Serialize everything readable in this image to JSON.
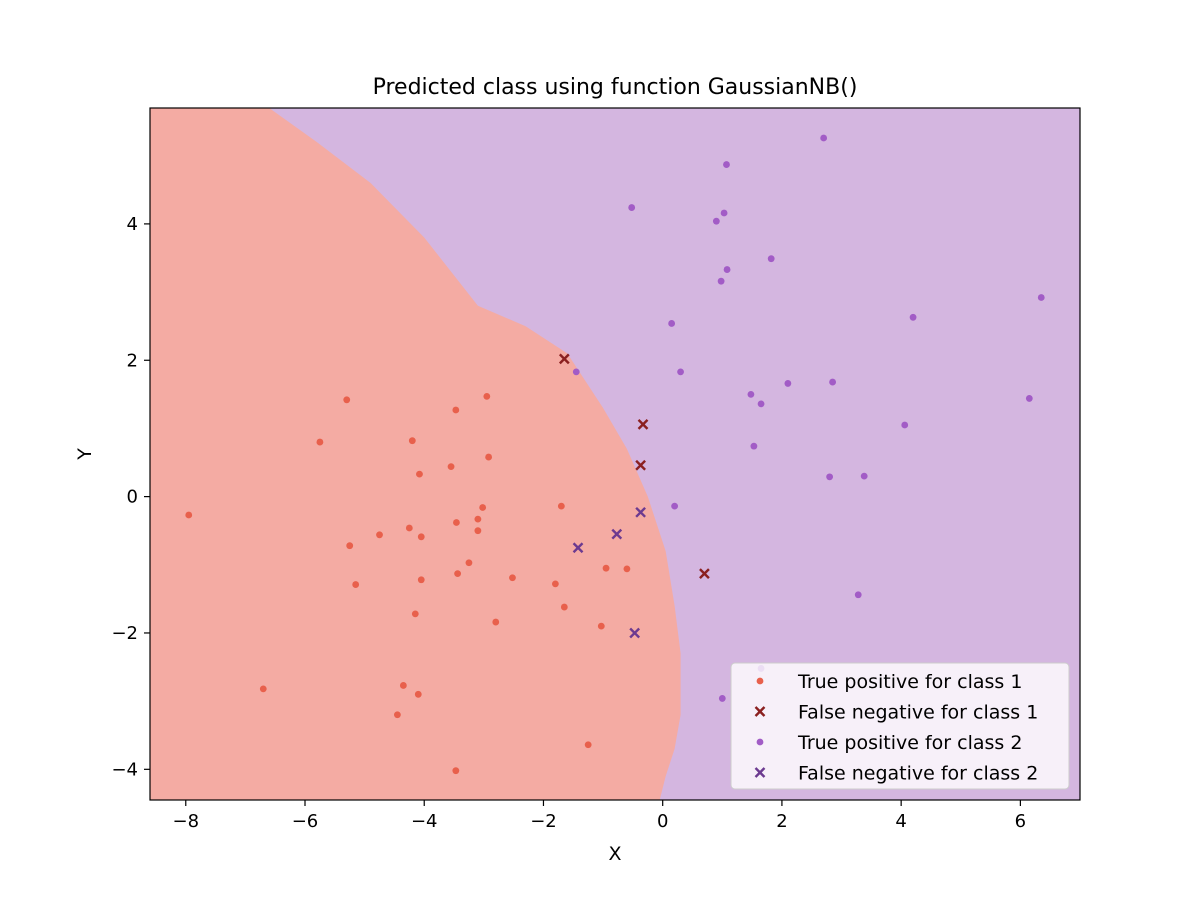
{
  "chart_data": {
    "type": "scatter",
    "title": "Predicted class using function GaussianNB()",
    "xlabel": "X",
    "ylabel": "Y",
    "xlim": [
      -8.6,
      7.0
    ],
    "ylim": [
      -4.45,
      5.7
    ],
    "xticks": [
      -8,
      -6,
      -4,
      -2,
      0,
      2,
      4,
      6
    ],
    "yticks": [
      -4,
      -2,
      0,
      2,
      4
    ],
    "xtick_labels": [
      "−8",
      "−6",
      "−4",
      "−2",
      "0",
      "2",
      "4",
      "6"
    ],
    "ytick_labels": [
      "−4",
      "−2",
      "0",
      "2",
      "4"
    ],
    "grid": false,
    "legend_position": "lower-right",
    "colors": {
      "region_class1": "#f4aba3",
      "region_class2": "#d4b6e0",
      "tp_class1": "#e8604c",
      "fn_class1": "#8b2020",
      "tp_class2": "#a25cc6",
      "fn_class2": "#6c3a90"
    },
    "decision_boundary": [
      [
        -6.6,
        5.7
      ],
      [
        -5.8,
        5.2
      ],
      [
        -4.9,
        4.6
      ],
      [
        -4.0,
        3.8
      ],
      [
        -3.1,
        2.8
      ],
      [
        -2.3,
        2.5
      ],
      [
        -1.6,
        2.1
      ],
      [
        -1.0,
        1.3
      ],
      [
        -0.6,
        0.7
      ],
      [
        -0.25,
        0.0
      ],
      [
        0.05,
        -0.8
      ],
      [
        0.2,
        -1.6
      ],
      [
        0.3,
        -2.3
      ],
      [
        0.3,
        -3.2
      ],
      [
        0.2,
        -3.7
      ],
      [
        0.05,
        -4.1
      ],
      [
        -0.05,
        -4.45
      ]
    ],
    "series": [
      {
        "name": "True positive for class 1",
        "marker": "dot",
        "points": [
          [
            -7.95,
            -0.27
          ],
          [
            -6.7,
            -2.82
          ],
          [
            -5.75,
            0.8
          ],
          [
            -5.3,
            1.42
          ],
          [
            -5.25,
            -0.72
          ],
          [
            -5.15,
            -1.29
          ],
          [
            -4.75,
            -0.56
          ],
          [
            -4.45,
            -3.2
          ],
          [
            -4.35,
            -2.77
          ],
          [
            -4.25,
            -0.46
          ],
          [
            -4.2,
            0.82
          ],
          [
            -4.15,
            -1.72
          ],
          [
            -4.1,
            -2.9
          ],
          [
            -4.08,
            0.33
          ],
          [
            -4.05,
            -0.59
          ],
          [
            -4.05,
            -1.22
          ],
          [
            -3.55,
            0.44
          ],
          [
            -3.47,
            -4.02
          ],
          [
            -3.47,
            1.27
          ],
          [
            -3.46,
            -0.38
          ],
          [
            -3.44,
            -1.13
          ],
          [
            -3.25,
            -0.97
          ],
          [
            -3.1,
            -0.33
          ],
          [
            -3.1,
            -0.5
          ],
          [
            -3.02,
            -0.16
          ],
          [
            -2.95,
            1.47
          ],
          [
            -2.92,
            0.58
          ],
          [
            -2.8,
            -1.84
          ],
          [
            -2.52,
            -1.19
          ],
          [
            -1.8,
            -1.28
          ],
          [
            -1.7,
            -0.14
          ],
          [
            -1.65,
            -1.62
          ],
          [
            -1.25,
            -3.64
          ],
          [
            -1.03,
            -1.9
          ],
          [
            -0.95,
            -1.05
          ],
          [
            -0.6,
            -1.06
          ]
        ]
      },
      {
        "name": "False negative for class 1",
        "marker": "x",
        "points": [
          [
            -1.65,
            2.02
          ],
          [
            -0.33,
            1.06
          ],
          [
            -0.37,
            0.46
          ],
          [
            0.7,
            -1.13
          ]
        ]
      },
      {
        "name": "True positive for class 2",
        "marker": "dot",
        "points": [
          [
            -1.45,
            1.83
          ],
          [
            -0.52,
            4.24
          ],
          [
            0.15,
            2.54
          ],
          [
            0.2,
            -0.14
          ],
          [
            0.3,
            1.83
          ],
          [
            0.9,
            4.04
          ],
          [
            0.98,
            3.16
          ],
          [
            1.0,
            -2.96
          ],
          [
            1.03,
            4.16
          ],
          [
            1.07,
            4.87
          ],
          [
            1.08,
            3.33
          ],
          [
            1.48,
            1.5
          ],
          [
            1.53,
            0.74
          ],
          [
            1.65,
            1.36
          ],
          [
            1.65,
            -2.52
          ],
          [
            1.82,
            3.49
          ],
          [
            2.1,
            1.66
          ],
          [
            2.7,
            5.26
          ],
          [
            2.8,
            0.29
          ],
          [
            2.85,
            1.68
          ],
          [
            3.28,
            -1.44
          ],
          [
            3.38,
            0.3
          ],
          [
            4.06,
            1.05
          ],
          [
            4.2,
            2.63
          ],
          [
            6.15,
            1.44
          ],
          [
            6.35,
            2.92
          ]
        ]
      },
      {
        "name": "False negative for class 2",
        "marker": "x",
        "points": [
          [
            -1.42,
            -0.75
          ],
          [
            -0.77,
            -0.55
          ],
          [
            -0.37,
            -0.23
          ],
          [
            -0.47,
            -2.0
          ]
        ]
      }
    ]
  }
}
